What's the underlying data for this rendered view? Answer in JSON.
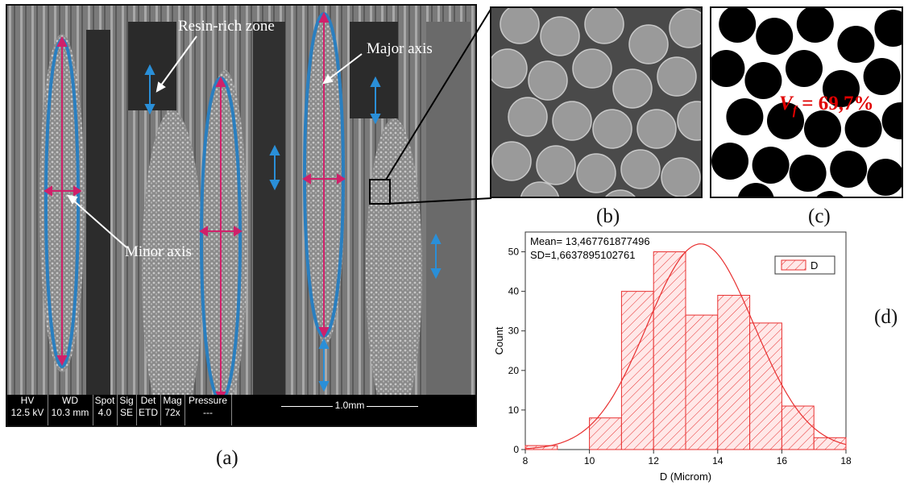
{
  "figure": {
    "panel_a": {
      "label": "(a)",
      "annotations": {
        "resin_rich_zone": "Resin-rich zone",
        "major_axis": "Major axis",
        "minor_axis": "Minor axis"
      },
      "info_bar": {
        "headers": [
          "HV",
          "WD",
          "Spot",
          "Sig",
          "Det",
          "Mag",
          "Pressure"
        ],
        "values": [
          "12.5 kV",
          "10.3 mm",
          "4.0",
          "SE",
          "ETD",
          "72x",
          "---"
        ],
        "scale_bar": "1.0mm"
      },
      "colors": {
        "ellipse": "#2a7fc0",
        "axis_arrow": "#d0206a",
        "gap_arrow": "#2a8fd8"
      }
    },
    "panel_b": {
      "label": "(b)"
    },
    "panel_c": {
      "label": "(c)",
      "vf_symbol": "V",
      "vf_subscript": "f",
      "vf_value": "= 69,7%"
    },
    "panel_d": {
      "label": "(d)"
    }
  },
  "chart_data": {
    "type": "bar",
    "bins": [
      [
        8,
        9
      ],
      [
        9,
        10
      ],
      [
        10,
        11
      ],
      [
        11,
        12
      ],
      [
        12,
        13
      ],
      [
        13,
        14
      ],
      [
        14,
        15
      ],
      [
        15,
        16
      ],
      [
        16,
        17
      ],
      [
        17,
        18
      ]
    ],
    "values": [
      1,
      0,
      8,
      40,
      50,
      34,
      39,
      32,
      11,
      3
    ],
    "series": [
      {
        "name": "D",
        "values": [
          1,
          0,
          8,
          40,
          50,
          34,
          39,
          32,
          11,
          3
        ]
      }
    ],
    "fit": {
      "type": "normal",
      "mean": 13.467761877496,
      "sd": 1.6637895102761,
      "peak": 52
    },
    "stats_text": [
      "Mean= 13,467761877496",
      "SD=1,6637895102761"
    ],
    "xlabel": "D (Microm)",
    "ylabel": "Count",
    "xlim": [
      8,
      18
    ],
    "ylim": [
      0,
      55
    ],
    "xticks": [
      8,
      10,
      12,
      14,
      16,
      18
    ],
    "yticks": [
      0,
      10,
      20,
      30,
      40,
      50
    ],
    "legend": "D",
    "legend_position": "top-right",
    "color": "#e83030"
  }
}
